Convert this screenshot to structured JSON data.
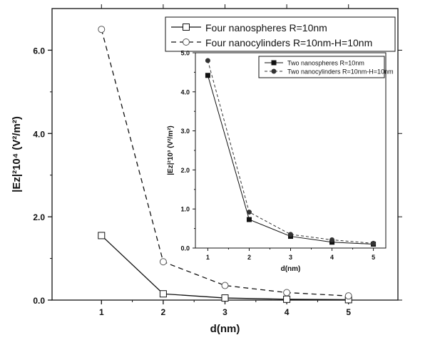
{
  "chart_data": [
    {
      "type": "line",
      "x": [
        1,
        2,
        3,
        4,
        5
      ],
      "xlabel": "d(nm)",
      "ylabel": "|Ez|²10⁴ (V²/m²)",
      "xlim": [
        0.2,
        5.8
      ],
      "ylim": [
        0.0,
        7.0
      ],
      "xticks": [
        "1",
        "2",
        "3",
        "4",
        "5"
      ],
      "yticks": [
        "0.0",
        "2.0",
        "4.0",
        "6.0"
      ],
      "legend_position": "top-right",
      "series": [
        {
          "name": "Four nanospheres R=10nm",
          "values": [
            1.55,
            0.15,
            0.05,
            0.02,
            0.01
          ],
          "color": "#111111",
          "line_style": "solid",
          "marker": "open-square"
        },
        {
          "name": "Four nanocylinders R=10nm-H=10nm",
          "values": [
            6.5,
            0.92,
            0.35,
            0.18,
            0.1
          ],
          "color": "#111111",
          "line_style": "dashed",
          "marker": "open-circle"
        }
      ]
    },
    {
      "type": "line",
      "x": [
        1,
        2,
        3,
        4,
        5
      ],
      "xlabel": "d(nm)",
      "ylabel": "|Ez|²10³ (V²/m²)",
      "xlim": [
        0.7,
        5.3
      ],
      "ylim": [
        0.0,
        5.0
      ],
      "xticks": [
        "1",
        "2",
        "3",
        "4",
        "5"
      ],
      "yticks": [
        "0.0",
        "1.0",
        "2.0",
        "3.0",
        "4.0",
        "5.0"
      ],
      "legend_position": "top-right",
      "series": [
        {
          "name": "Two nanospheres R=10nm",
          "values": [
            4.42,
            0.73,
            0.3,
            0.15,
            0.1
          ],
          "color": "#111111",
          "line_style": "solid",
          "marker": "filled-square"
        },
        {
          "name": "Two nanocylinders R=10nm-H=10nm",
          "values": [
            4.8,
            0.92,
            0.35,
            0.21,
            0.12
          ],
          "color": "#333333",
          "line_style": "dashed",
          "marker": "filled-circle"
        }
      ]
    }
  ]
}
